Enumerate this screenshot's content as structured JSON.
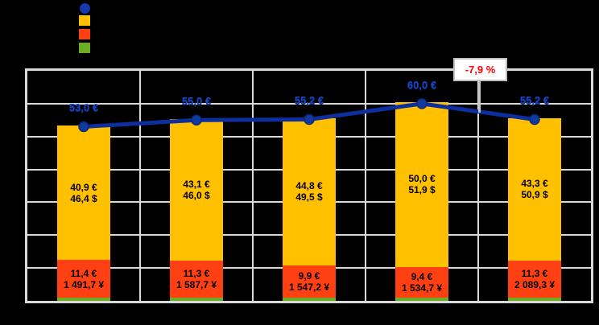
{
  "legend": {
    "markers": [
      {
        "name": "line-series-swatch",
        "shape": "circle",
        "color": "#1539AE"
      },
      {
        "name": "main-segment-swatch",
        "shape": "square",
        "color": "#FFC000"
      },
      {
        "name": "lower-segment-swatch",
        "shape": "square",
        "color": "#FF4013"
      },
      {
        "name": "base-segment-swatch",
        "shape": "square",
        "color": "#6BAE23"
      }
    ]
  },
  "chart_data": {
    "type": "bar",
    "subtype": "stacked-bars-with-line-overlay",
    "background": "#000000",
    "grid": true,
    "gridline_color": "#D9D9D9",
    "legend_position": "top-left",
    "ylim": [
      0,
      70
    ],
    "y_major_step": 10,
    "categories": [
      "",
      "",
      "",
      "",
      ""
    ],
    "series": [
      {
        "name": "main-segment",
        "color": "#FFC000",
        "values": [
          40.9,
          43.1,
          44.8,
          50.0,
          43.3
        ],
        "labels": [
          [
            "40,9 €",
            "46,4 $"
          ],
          [
            "43,1 €",
            "46,0 $"
          ],
          [
            "44,8 €",
            "49,5 $"
          ],
          [
            "50,0 €",
            "51,9 $"
          ],
          [
            "43,3 €",
            "50,9 $"
          ]
        ]
      },
      {
        "name": "lower-segment",
        "color": "#FF4013",
        "values": [
          11.4,
          11.3,
          9.9,
          9.4,
          11.3
        ],
        "labels": [
          [
            "11,4 €",
            "1 491,7 ¥"
          ],
          [
            "11,3 €",
            "1 587,7 ¥"
          ],
          [
            "9,9 €",
            "1 547,2 ¥"
          ],
          [
            "9,4 €",
            "1 534,7 ¥"
          ],
          [
            "11,3 €",
            "2 089,3 ¥"
          ]
        ]
      },
      {
        "name": "base-segment",
        "color": "#6BAE23",
        "values": [
          0.7,
          0.6,
          0.5,
          0.6,
          0.6
        ],
        "labels": []
      }
    ],
    "line": {
      "name": "total-line",
      "color": "#0D2F9E",
      "marker_color": "#123A9E",
      "label_color": "#1A46C2",
      "values": [
        53.0,
        55.0,
        55.2,
        60.0,
        55.2
      ],
      "labels": [
        "53,0 €",
        "55,0 €",
        "55,2 €",
        "60,0 €",
        "55,2 €"
      ]
    },
    "annotation": {
      "text": "-7,9 %",
      "color": "#FF0000"
    }
  }
}
